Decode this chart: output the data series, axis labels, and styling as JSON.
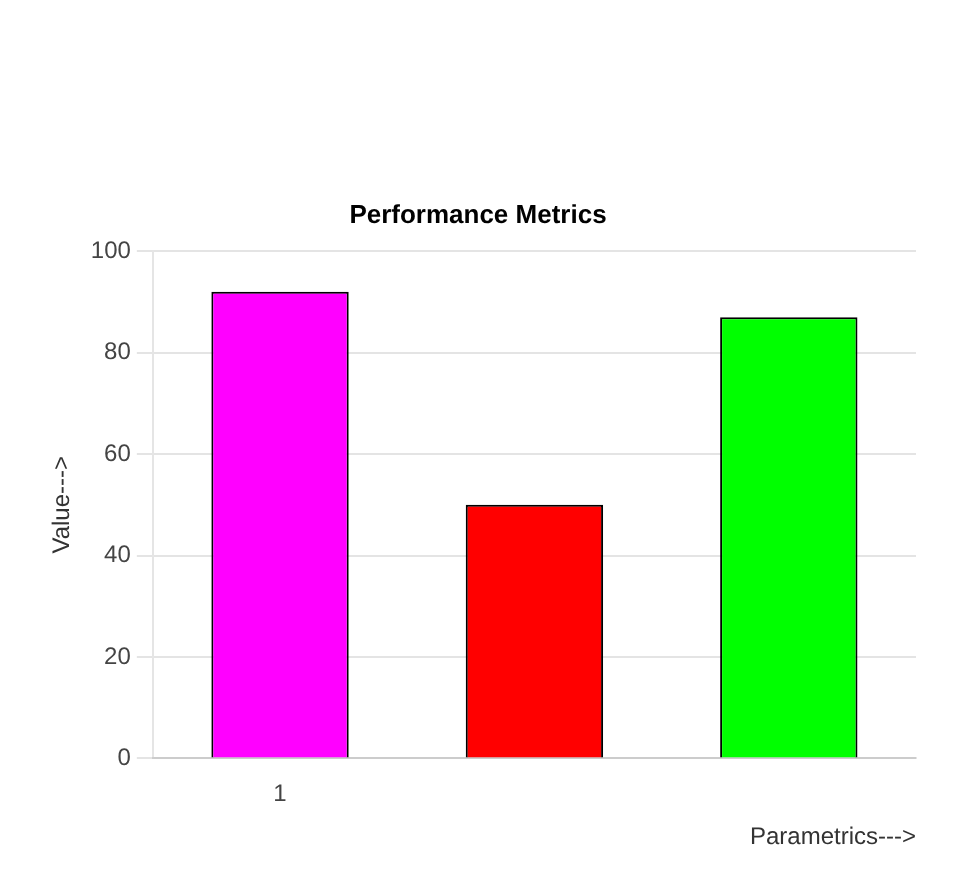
{
  "chart_data": {
    "type": "bar",
    "title": "Performance Metrics",
    "xlabel": "Parametrics--->",
    "ylabel": "Value--->",
    "categories": [
      "1",
      null,
      null
    ],
    "values": [
      92,
      50,
      87
    ],
    "colors": [
      "#ff00ff",
      "#ff0000",
      "#00ff00"
    ],
    "ylim": [
      0,
      100
    ],
    "yticks": [
      0,
      20,
      40,
      60,
      80,
      100
    ],
    "grid": "y",
    "legend": false
  }
}
